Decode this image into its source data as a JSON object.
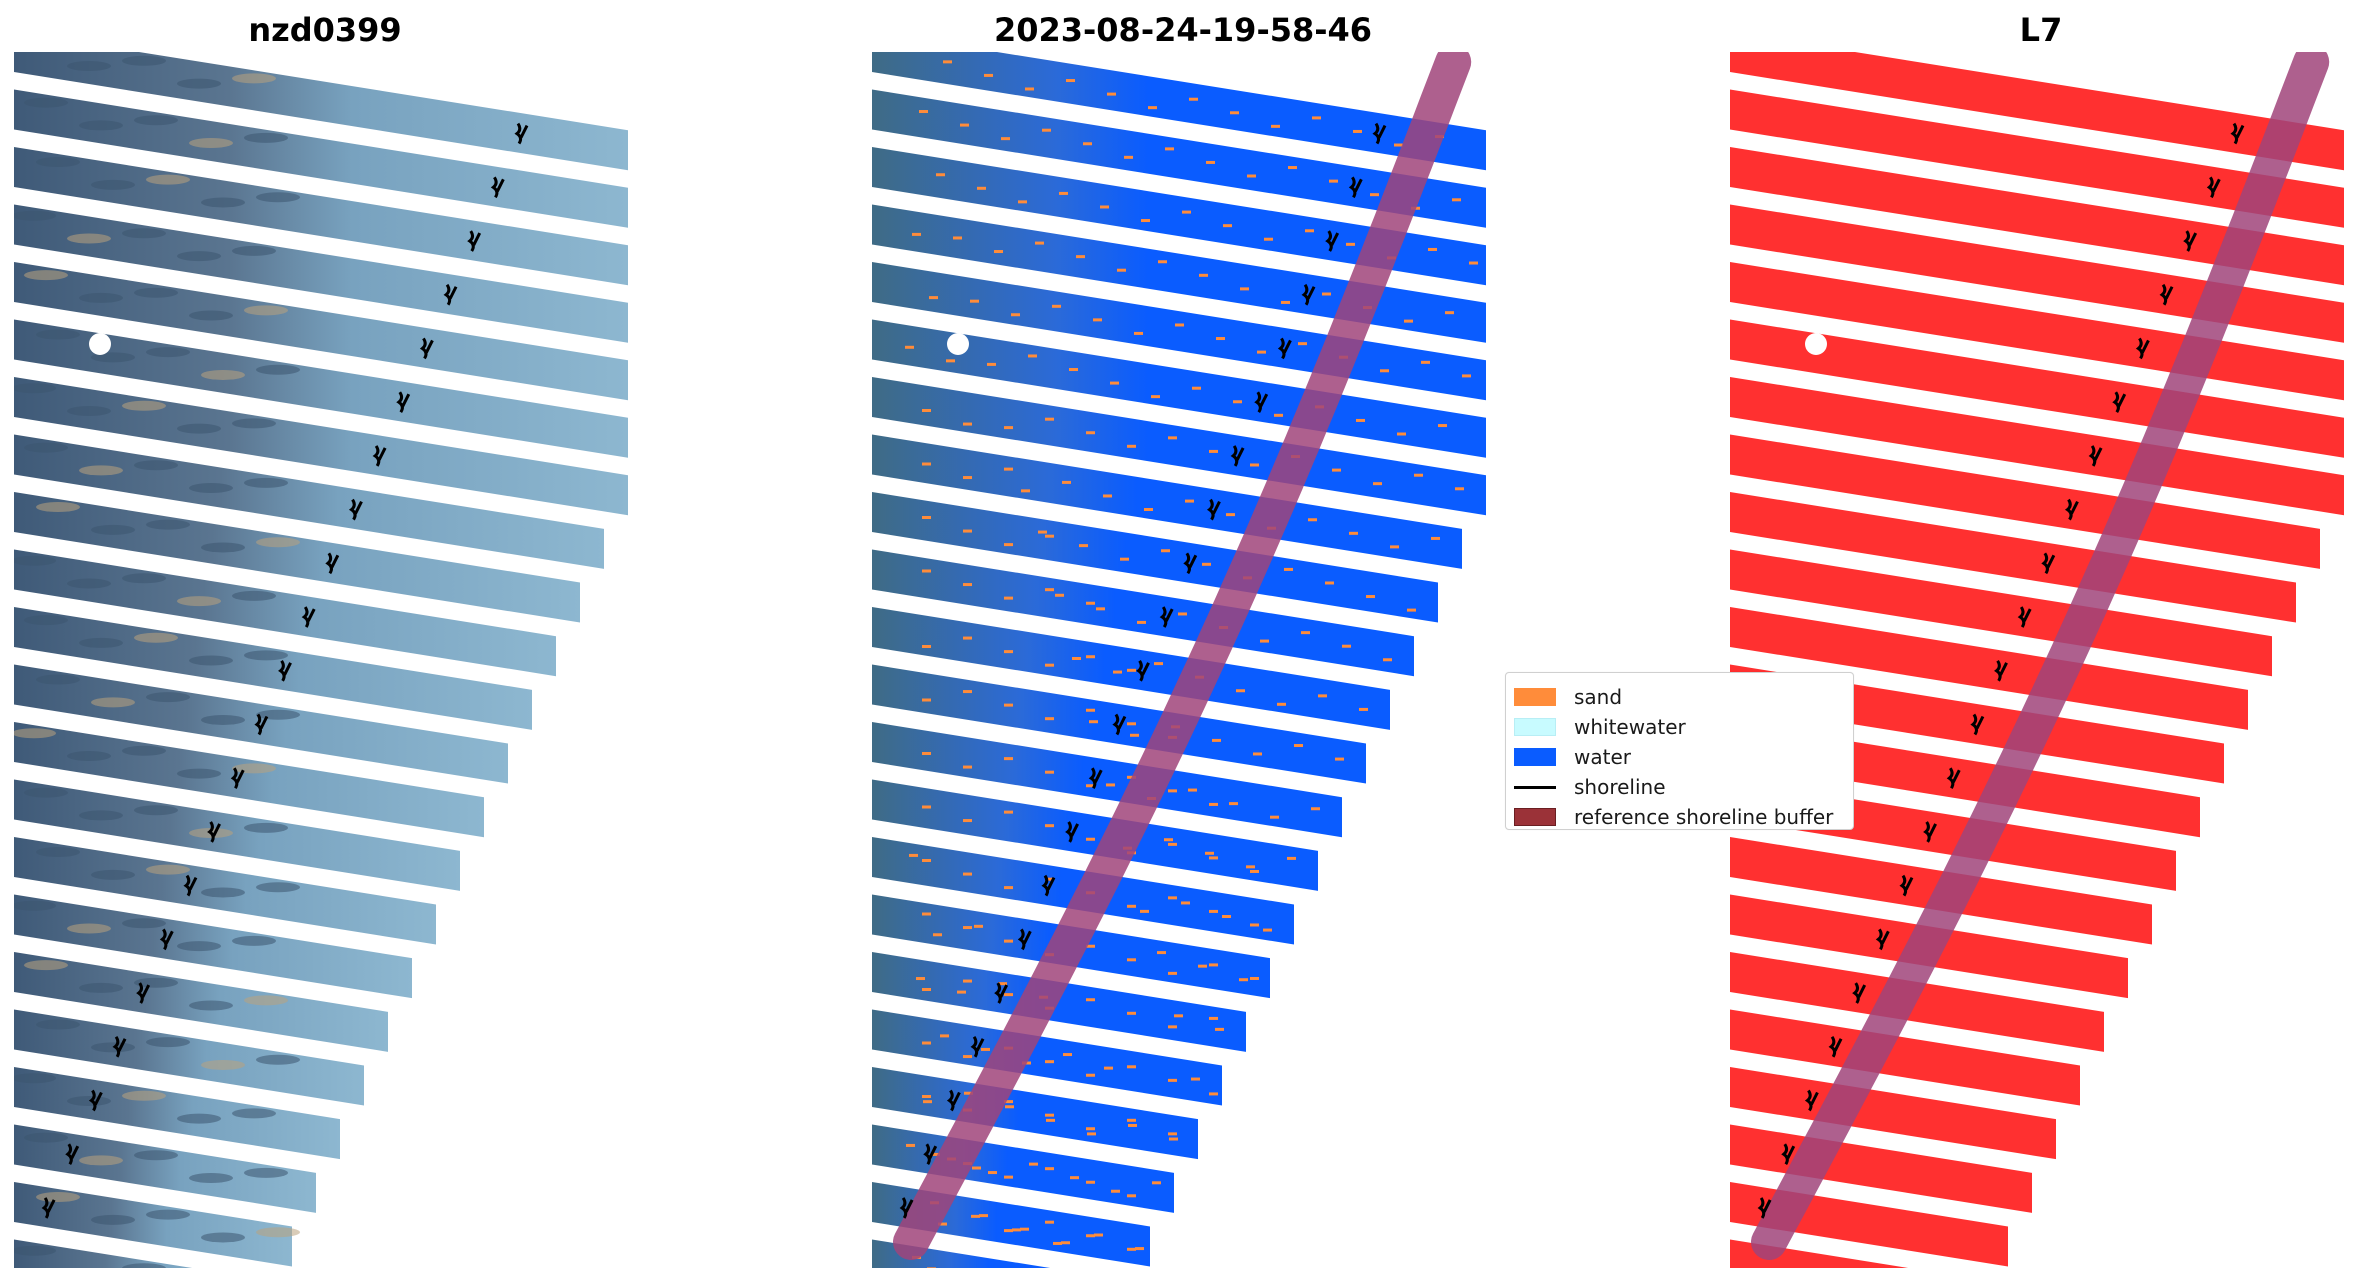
{
  "panels": [
    {
      "title": "nzd0399"
    },
    {
      "title": "2023-08-24-19-58-46"
    },
    {
      "title": "L7"
    }
  ],
  "legend": {
    "items": [
      {
        "label": "sand",
        "color": "#ff8c3a",
        "kind": "patch"
      },
      {
        "label": "whitewater",
        "color": "#c8fbff",
        "kind": "patch"
      },
      {
        "label": "water",
        "color": "#0a5cff",
        "kind": "patch"
      },
      {
        "label": "shoreline",
        "color": "#000000",
        "kind": "line"
      },
      {
        "label": "reference shoreline buffer",
        "color": "#9b3238",
        "kind": "patch"
      }
    ]
  },
  "colors": {
    "imagery_land": "#4a6585",
    "imagery_sea": "#7ea9c6",
    "classified_water": "#0a5cff",
    "classified_sand": "#ff8c3a",
    "cloud_mask": "#ff3030",
    "reference_buffer": "#a0447a",
    "shoreline": "#000000"
  }
}
